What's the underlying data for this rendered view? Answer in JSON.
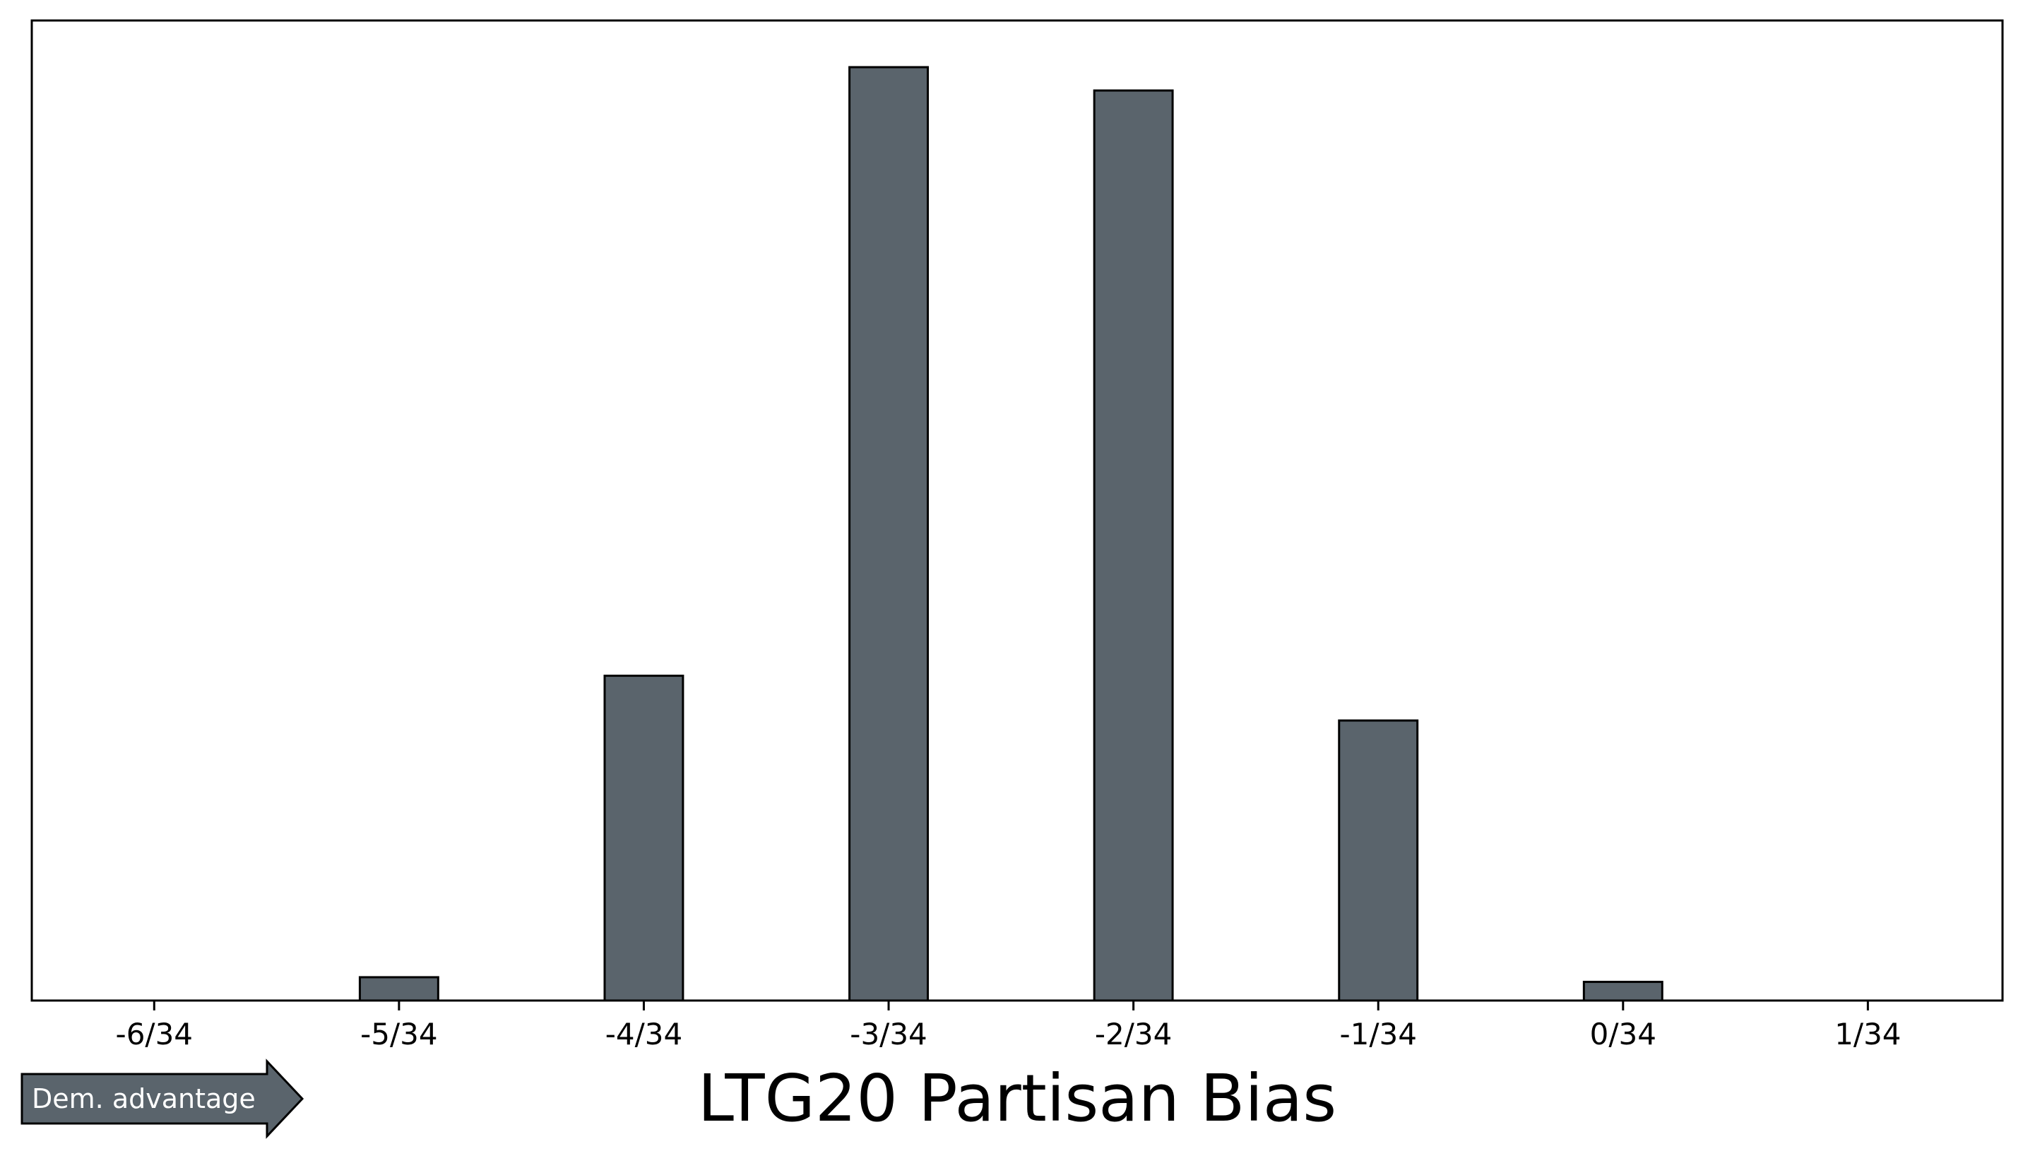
{
  "chart_data": {
    "type": "bar",
    "x": [
      -6,
      -5.5,
      -5,
      -4.5,
      -4,
      -3.5,
      -3,
      -2.5,
      -2,
      -1.5,
      -1,
      -0.5,
      0,
      0.5,
      1
    ],
    "values": [
      0,
      0,
      0.025,
      0,
      0.348,
      0,
      1.0,
      0,
      0.975,
      0,
      0.3,
      0,
      0.02,
      0,
      0
    ],
    "tick_labels": [
      "-6/34",
      "-5/34",
      "-4/34",
      "-3/34",
      "-2/34",
      "-1/34",
      "0/34",
      "1/34"
    ],
    "tick_values": [
      -6,
      -5,
      -4,
      -3,
      -2,
      -1,
      0,
      1
    ],
    "xlabel": "LTG20 Partisan Bias",
    "ylabel": "",
    "xlim": [
      -6.5,
      1.55
    ],
    "ylim": [
      0,
      1.05
    ],
    "grid": false,
    "bar_color": "#5a646c",
    "edge_color": "#000000"
  },
  "annotation": {
    "arrow_label": "Dem. advantage",
    "arrow_color": "#5a646c"
  }
}
